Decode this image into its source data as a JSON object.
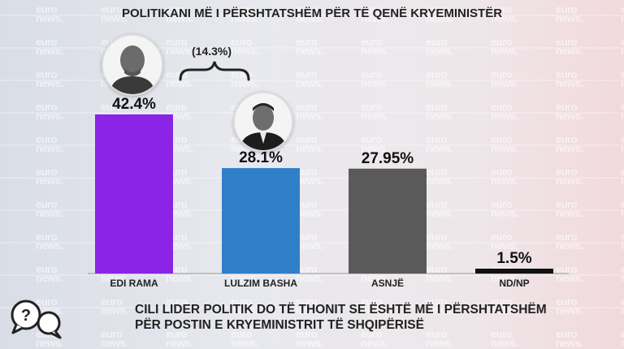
{
  "title": "POLITIKANI MË I PËRSHTATSHËM PËR TË QENË KRYEMINISTËR",
  "difference_label": "(14.3%)",
  "question_line1": "CILI LIDER POLITIK DO TË THONIT SE ËSHTË MË I PËRSHTATSHËM",
  "question_line2": "PËR POSTIN E KRYEMINISTRIT TË SHQIPËRISË",
  "watermark": "euro news.",
  "colors": {
    "rama": "#8a24e6",
    "basha": "#2f7fc9",
    "asnje": "#5a5a5a",
    "ndnp": "#111111"
  },
  "chart_data": {
    "type": "bar",
    "title": "POLITIKANI MË I PËRSHTATSHËM PËR TË QENË KRYEMINISTËR",
    "categories": [
      "EDI RAMA",
      "LULZIM BASHA",
      "ASNJË",
      "ND/NP"
    ],
    "values": [
      42.4,
      28.1,
      27.95,
      1.5
    ],
    "value_labels": [
      "42.4%",
      "28.1%",
      "27.95%",
      "1.5%"
    ],
    "xlabel": "",
    "ylabel": "",
    "ylim": [
      0,
      45
    ],
    "grid": false,
    "legend": "none"
  }
}
